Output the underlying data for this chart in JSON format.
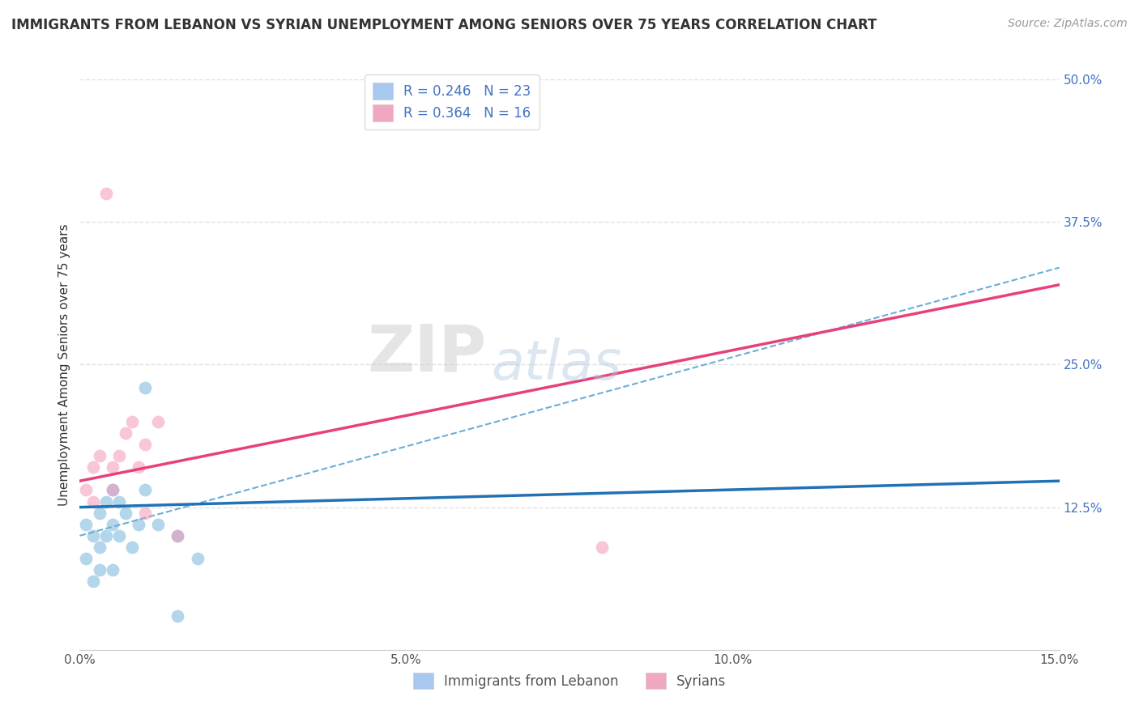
{
  "title": "IMMIGRANTS FROM LEBANON VS SYRIAN UNEMPLOYMENT AMONG SENIORS OVER 75 YEARS CORRELATION CHART",
  "source": "Source: ZipAtlas.com",
  "ylabel": "Unemployment Among Seniors over 75 years",
  "legend_entries": [
    {
      "label": "R = 0.246   N = 23",
      "color": "#a8c8f0"
    },
    {
      "label": "R = 0.364   N = 16",
      "color": "#f0a8c0"
    }
  ],
  "xlim": [
    0.0,
    0.15
  ],
  "ylim": [
    0.0,
    0.5
  ],
  "xticks": [
    0.0,
    0.05,
    0.1,
    0.15
  ],
  "xticklabels": [
    "0.0%",
    "5.0%",
    "10.0%",
    "15.0%"
  ],
  "yticks_right": [
    0.125,
    0.25,
    0.375,
    0.5
  ],
  "yticklabels_right": [
    "12.5%",
    "25.0%",
    "37.5%",
    "50.0%"
  ],
  "background_color": "#ffffff",
  "watermark_zip": "ZIP",
  "watermark_atlas": "atlas",
  "series_lebanon": {
    "x": [
      0.001,
      0.001,
      0.002,
      0.002,
      0.003,
      0.003,
      0.003,
      0.004,
      0.004,
      0.005,
      0.005,
      0.005,
      0.006,
      0.006,
      0.007,
      0.008,
      0.009,
      0.01,
      0.01,
      0.012,
      0.015,
      0.018,
      0.015
    ],
    "y": [
      0.11,
      0.08,
      0.1,
      0.06,
      0.12,
      0.09,
      0.07,
      0.13,
      0.1,
      0.14,
      0.11,
      0.07,
      0.13,
      0.1,
      0.12,
      0.09,
      0.11,
      0.23,
      0.14,
      0.11,
      0.1,
      0.08,
      0.03
    ],
    "color": "#6baed6",
    "alpha": 0.5,
    "size": 130
  },
  "series_syrian": {
    "x": [
      0.001,
      0.002,
      0.002,
      0.003,
      0.004,
      0.005,
      0.005,
      0.006,
      0.007,
      0.008,
      0.009,
      0.01,
      0.012,
      0.08,
      0.01,
      0.015
    ],
    "y": [
      0.14,
      0.16,
      0.13,
      0.17,
      0.4,
      0.16,
      0.14,
      0.17,
      0.19,
      0.2,
      0.16,
      0.18,
      0.2,
      0.09,
      0.12,
      0.1
    ],
    "color": "#f48fb1",
    "alpha": 0.5,
    "size": 130
  },
  "fit_lebanon_y0": 0.125,
  "fit_lebanon_y1": 0.148,
  "fit_syrian_y0": 0.148,
  "fit_syrian_y1": 0.32,
  "fit_dashed_y0": 0.1,
  "fit_dashed_y1": 0.335,
  "grid_color": "#cccccc",
  "grid_linestyle": "--",
  "grid_alpha": 0.6,
  "legend_bottom_labels": [
    "Immigrants from Lebanon",
    "Syrians"
  ],
  "legend_bottom_colors": [
    "#a8c8f0",
    "#f0a8c0"
  ]
}
